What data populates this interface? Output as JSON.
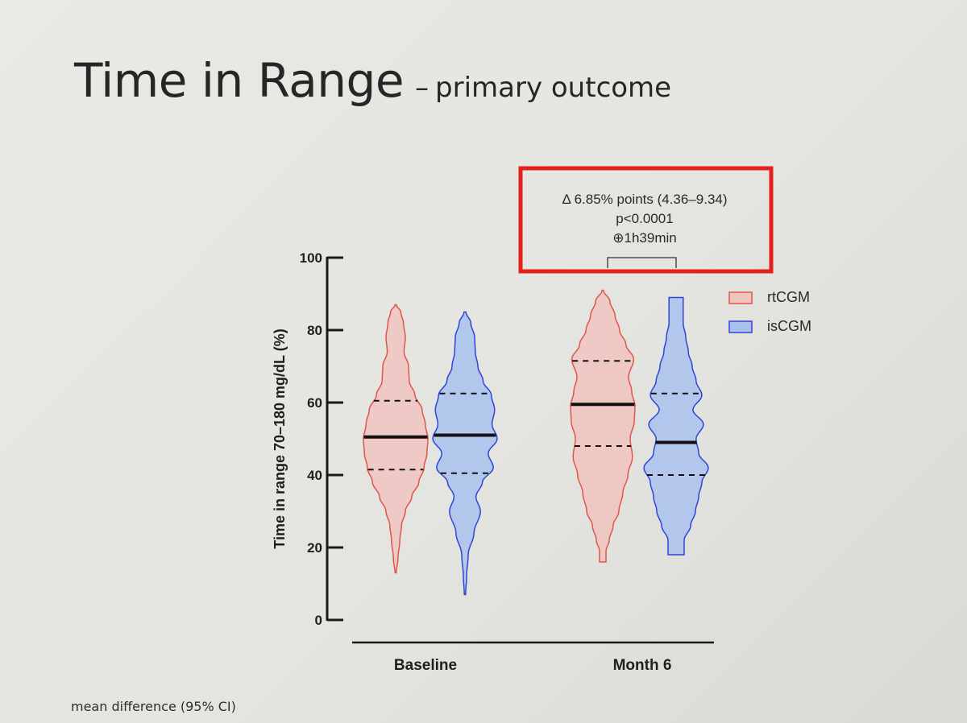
{
  "slide": {
    "title_main": "Time in Range",
    "title_separator": "–",
    "title_sub": "primary outcome",
    "footnote": "mean difference (95% CI)"
  },
  "chart_data": {
    "type": "violin",
    "ylabel": "Time in range 70–180 mg/dL (%)",
    "ylim": [
      0,
      100
    ],
    "yticks": [
      0,
      20,
      40,
      60,
      80,
      100
    ],
    "categories": [
      "Baseline",
      "Month 6"
    ],
    "legend_position": "top-right",
    "series": [
      {
        "name": "rtCGM",
        "fill": "#f0c4bf",
        "stroke": "#e0564a",
        "groups": [
          {
            "category": "Baseline",
            "median": 50.5,
            "q1": 41.5,
            "q3": 60.5,
            "min": 13,
            "max": 87,
            "profile": [
              [
                13,
                0.02
              ],
              [
                17,
                0.07
              ],
              [
                22,
                0.13
              ],
              [
                26,
                0.18
              ],
              [
                30,
                0.3
              ],
              [
                34,
                0.5
              ],
              [
                38,
                0.72
              ],
              [
                42,
                0.88
              ],
              [
                46,
                0.97
              ],
              [
                50,
                1.0
              ],
              [
                54,
                0.92
              ],
              [
                58,
                0.82
              ],
              [
                62,
                0.6
              ],
              [
                66,
                0.42
              ],
              [
                70,
                0.4
              ],
              [
                74,
                0.26
              ],
              [
                78,
                0.3
              ],
              [
                82,
                0.24
              ],
              [
                85,
                0.16
              ],
              [
                87,
                0.02
              ]
            ]
          },
          {
            "category": "Month 6",
            "median": 59.5,
            "q1": 48.0,
            "q3": 71.5,
            "min": 16,
            "max": 91,
            "profile": [
              [
                16,
                0.1
              ],
              [
                19,
                0.1
              ],
              [
                22,
                0.2
              ],
              [
                26,
                0.32
              ],
              [
                30,
                0.5
              ],
              [
                35,
                0.62
              ],
              [
                40,
                0.78
              ],
              [
                45,
                0.92
              ],
              [
                50,
                0.85
              ],
              [
                55,
                0.98
              ],
              [
                59,
                1.0
              ],
              [
                63,
                0.9
              ],
              [
                67,
                0.8
              ],
              [
                72,
                0.96
              ],
              [
                76,
                0.72
              ],
              [
                80,
                0.52
              ],
              [
                84,
                0.38
              ],
              [
                88,
                0.22
              ],
              [
                91,
                0.02
              ]
            ]
          }
        ]
      },
      {
        "name": "isCGM",
        "fill": "#a9c2ed",
        "stroke": "#2f45d8",
        "groups": [
          {
            "category": "Baseline",
            "median": 51.0,
            "q1": 40.5,
            "q3": 62.5,
            "min": 7,
            "max": 85,
            "profile": [
              [
                7,
                0.02
              ],
              [
                12,
                0.05
              ],
              [
                18,
                0.1
              ],
              [
                24,
                0.28
              ],
              [
                30,
                0.48
              ],
              [
                34,
                0.34
              ],
              [
                38,
                0.54
              ],
              [
                42,
                0.88
              ],
              [
                46,
                0.72
              ],
              [
                50,
                1.0
              ],
              [
                54,
                0.84
              ],
              [
                58,
                0.92
              ],
              [
                62,
                0.82
              ],
              [
                66,
                0.56
              ],
              [
                70,
                0.4
              ],
              [
                74,
                0.32
              ],
              [
                78,
                0.3
              ],
              [
                82,
                0.18
              ],
              [
                85,
                0.03
              ]
            ]
          },
          {
            "category": "Month 6",
            "median": 49.0,
            "q1": 40.0,
            "q3": 62.5,
            "min": 18,
            "max": 89,
            "profile": [
              [
                18,
                0.25
              ],
              [
                22,
                0.25
              ],
              [
                26,
                0.45
              ],
              [
                30,
                0.6
              ],
              [
                34,
                0.7
              ],
              [
                38,
                0.8
              ],
              [
                42,
                1.0
              ],
              [
                46,
                0.7
              ],
              [
                50,
                0.62
              ],
              [
                54,
                0.85
              ],
              [
                58,
                0.52
              ],
              [
                62,
                0.8
              ],
              [
                66,
                0.62
              ],
              [
                70,
                0.5
              ],
              [
                74,
                0.38
              ],
              [
                78,
                0.3
              ],
              [
                82,
                0.22
              ],
              [
                86,
                0.22
              ],
              [
                89,
                0.22
              ]
            ]
          }
        ]
      }
    ],
    "annotation": {
      "lines": [
        "Δ 6.85% points (4.36–9.34)",
        "p<0.0001",
        "⊕1h39min"
      ],
      "box_color": "#e2211c"
    }
  }
}
